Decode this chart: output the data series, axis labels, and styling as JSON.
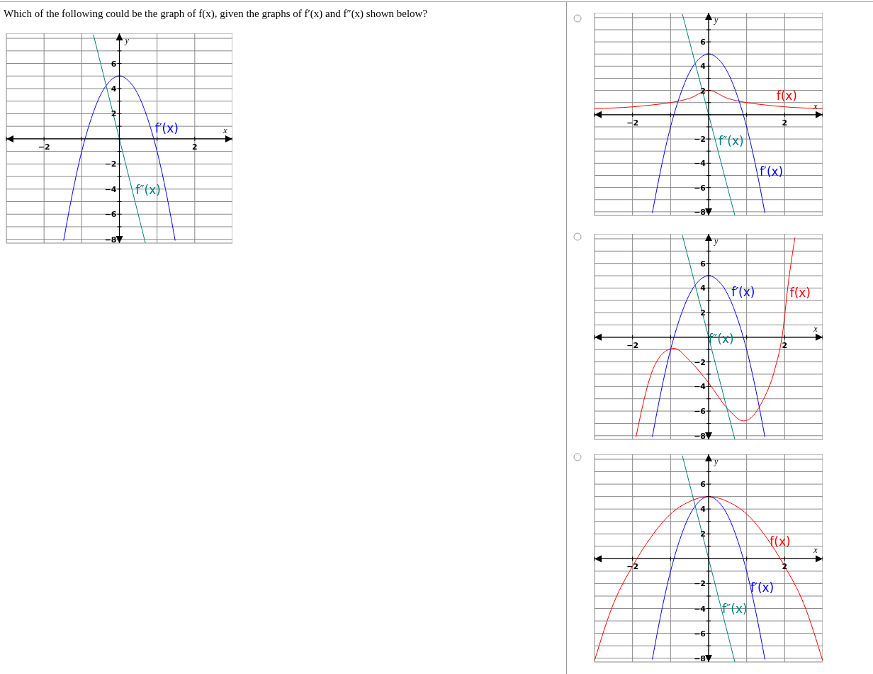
{
  "chart_data": [
    {
      "type": "line",
      "title": "Which of the following could be the graph of f(x), given the graphs of f′(x) and f″(x) shown below?",
      "xlabel": "x",
      "ylabel": "y",
      "grid": true,
      "marker": "none",
      "line_style": "solid",
      "xlim": [
        -3,
        3
      ],
      "ylim": [
        -8.3,
        8.4
      ],
      "xticks": [
        {
          "value": -3,
          "label": null
        },
        {
          "value": -2,
          "label": "−2"
        },
        {
          "value": -1,
          "label": null
        },
        {
          "value": 0,
          "label": null
        },
        {
          "value": 1,
          "label": null
        },
        {
          "value": 2,
          "label": "2"
        },
        {
          "value": 3,
          "label": null
        }
      ],
      "yticks": [
        {
          "value": -8,
          "label": "−8"
        },
        {
          "value": -7,
          "label": null
        },
        {
          "value": -6,
          "label": "−6"
        },
        {
          "value": -5,
          "label": null
        },
        {
          "value": -4,
          "label": "−4"
        },
        {
          "value": -3,
          "label": null
        },
        {
          "value": -2,
          "label": "−2"
        },
        {
          "value": -1,
          "label": null
        },
        {
          "value": 0,
          "label": null
        },
        {
          "value": 1,
          "label": null
        },
        {
          "value": 2,
          "label": "2"
        },
        {
          "value": 3,
          "label": null
        },
        {
          "value": 4,
          "label": "4"
        },
        {
          "value": 5,
          "label": null
        },
        {
          "value": 6,
          "label": "6"
        },
        {
          "value": 7,
          "label": null
        },
        {
          "value": 8,
          "label": null
        }
      ],
      "series": [
        {
          "name": "f′(x)",
          "color": "#0000ff",
          "x": [
            -1.48,
            -1.25,
            -1,
            -0.75,
            -0.5,
            -0.25,
            0,
            0.25,
            0.5,
            0.75,
            1,
            1.25,
            1.48
          ],
          "values": [
            -8.1,
            -4.4,
            -1,
            1.6,
            3.5,
            4.6,
            5,
            4.6,
            3.5,
            1.6,
            -1,
            -4.4,
            -8.1
          ]
        },
        {
          "name": "f″(x)",
          "color": "#008080",
          "x": [
            -0.69,
            0.69
          ],
          "values": [
            8.3,
            -8.3
          ]
        }
      ]
    },
    {
      "type": "line",
      "xlabel": "x",
      "ylabel": "y",
      "grid": true,
      "marker": "none",
      "line_style": "solid",
      "xlim": [
        -3,
        3
      ],
      "ylim": [
        -8.3,
        8.4
      ],
      "xticks": [
        {
          "value": -3,
          "label": null
        },
        {
          "value": -2,
          "label": "−2"
        },
        {
          "value": -1,
          "label": null
        },
        {
          "value": 0,
          "label": null
        },
        {
          "value": 1,
          "label": null
        },
        {
          "value": 2,
          "label": "2"
        },
        {
          "value": 3,
          "label": null
        }
      ],
      "yticks": [
        {
          "value": -8,
          "label": "−8"
        },
        {
          "value": -7,
          "label": null
        },
        {
          "value": -6,
          "label": "−6"
        },
        {
          "value": -5,
          "label": null
        },
        {
          "value": -4,
          "label": "−4"
        },
        {
          "value": -3,
          "label": null
        },
        {
          "value": -2,
          "label": "−2"
        },
        {
          "value": -1,
          "label": null
        },
        {
          "value": 0,
          "label": null
        },
        {
          "value": 1,
          "label": null
        },
        {
          "value": 2,
          "label": "2"
        },
        {
          "value": 3,
          "label": null
        },
        {
          "value": 4,
          "label": "4"
        },
        {
          "value": 5,
          "label": null
        },
        {
          "value": 6,
          "label": "6"
        },
        {
          "value": 7,
          "label": null
        },
        {
          "value": 8,
          "label": null
        }
      ],
      "series": [
        {
          "name": "f(x)",
          "color": "#ff0000",
          "x": [
            -3,
            -2,
            -1.5,
            -1,
            -0.5,
            0,
            0.5,
            1,
            1.5,
            2,
            3
          ],
          "values": [
            0.5,
            0.65,
            0.8,
            1,
            1.35,
            2,
            1.35,
            1,
            0.8,
            0.65,
            0.5
          ]
        },
        {
          "name": "f′(x)",
          "color": "#0000ff",
          "x": [
            -1.48,
            -1.25,
            -1,
            -0.75,
            -0.5,
            -0.25,
            0,
            0.25,
            0.5,
            0.75,
            1,
            1.25,
            1.48
          ],
          "values": [
            -8.1,
            -4.4,
            -1,
            1.6,
            3.5,
            4.6,
            5,
            4.6,
            3.5,
            1.6,
            -1,
            -4.4,
            -8.1
          ]
        },
        {
          "name": "f″(x)",
          "color": "#008080",
          "x": [
            -0.69,
            0.69
          ],
          "values": [
            8.3,
            -8.3
          ]
        }
      ]
    },
    {
      "type": "line",
      "xlabel": "x",
      "ylabel": "y",
      "grid": true,
      "marker": "none",
      "line_style": "solid",
      "xlim": [
        -3,
        3
      ],
      "ylim": [
        -8.3,
        8.4
      ],
      "xticks": [
        {
          "value": -3,
          "label": null
        },
        {
          "value": -2,
          "label": "−2"
        },
        {
          "value": -1,
          "label": null
        },
        {
          "value": 0,
          "label": null
        },
        {
          "value": 1,
          "label": null
        },
        {
          "value": 2,
          "label": "2"
        },
        {
          "value": 3,
          "label": null
        }
      ],
      "yticks": [
        {
          "value": -8,
          "label": "−8"
        },
        {
          "value": -7,
          "label": null
        },
        {
          "value": -6,
          "label": "−6"
        },
        {
          "value": -5,
          "label": null
        },
        {
          "value": -4,
          "label": "−4"
        },
        {
          "value": -3,
          "label": null
        },
        {
          "value": -2,
          "label": "−2"
        },
        {
          "value": -1,
          "label": null
        },
        {
          "value": 0,
          "label": null
        },
        {
          "value": 1,
          "label": null
        },
        {
          "value": 2,
          "label": "2"
        },
        {
          "value": 3,
          "label": null
        },
        {
          "value": 4,
          "label": "4"
        },
        {
          "value": 5,
          "label": null
        },
        {
          "value": 6,
          "label": "6"
        },
        {
          "value": 7,
          "label": null
        },
        {
          "value": 8,
          "label": null
        }
      ],
      "series": [
        {
          "name": "f(x)",
          "color": "#ff0000",
          "x": [
            -1.91,
            -1.5,
            -1.2,
            -0.91,
            -0.5,
            0,
            0.5,
            0.92,
            1.4,
            1.75,
            1.93,
            2.1,
            2.27
          ],
          "values": [
            -8.1,
            -2.9,
            -1.3,
            -0.9,
            -1.9,
            -3.7,
            -5.8,
            -6.8,
            -5.3,
            -2.5,
            0,
            4.5,
            8.1
          ]
        },
        {
          "name": "f′(x)",
          "color": "#0000ff",
          "x": [
            -1.48,
            -1.25,
            -1,
            -0.75,
            -0.5,
            -0.25,
            0,
            0.25,
            0.5,
            0.75,
            1,
            1.25,
            1.48
          ],
          "values": [
            -8.1,
            -4.4,
            -1,
            1.6,
            3.5,
            4.6,
            5,
            4.6,
            3.5,
            1.6,
            -1,
            -4.4,
            -8.1
          ]
        },
        {
          "name": "f″(x)",
          "color": "#008080",
          "x": [
            -0.69,
            0.69
          ],
          "values": [
            8.3,
            -8.3
          ]
        }
      ]
    },
    {
      "type": "line",
      "xlabel": "x",
      "ylabel": "y",
      "grid": true,
      "marker": "none",
      "line_style": "solid",
      "xlim": [
        -3,
        3
      ],
      "ylim": [
        -8.3,
        8.4
      ],
      "xticks": [
        {
          "value": -3,
          "label": null
        },
        {
          "value": -2,
          "label": "−2"
        },
        {
          "value": -1,
          "label": null
        },
        {
          "value": 0,
          "label": null
        },
        {
          "value": 1,
          "label": null
        },
        {
          "value": 2,
          "label": "2"
        },
        {
          "value": 3,
          "label": null
        }
      ],
      "yticks": [
        {
          "value": -8,
          "label": "−8"
        },
        {
          "value": -7,
          "label": null
        },
        {
          "value": -6,
          "label": "−6"
        },
        {
          "value": -5,
          "label": null
        },
        {
          "value": -4,
          "label": "−4"
        },
        {
          "value": -3,
          "label": null
        },
        {
          "value": -2,
          "label": "−2"
        },
        {
          "value": -1,
          "label": null
        },
        {
          "value": 0,
          "label": null
        },
        {
          "value": 1,
          "label": null
        },
        {
          "value": 2,
          "label": "2"
        },
        {
          "value": 3,
          "label": null
        },
        {
          "value": 4,
          "label": "4"
        },
        {
          "value": 5,
          "label": null
        },
        {
          "value": 6,
          "label": "6"
        },
        {
          "value": 7,
          "label": null
        },
        {
          "value": 8,
          "label": null
        }
      ],
      "series": [
        {
          "name": "f(x)",
          "color": "#ff0000",
          "x": [
            -3,
            -2.5,
            -2,
            -1.5,
            -1,
            -0.5,
            0,
            0.5,
            1,
            1.5,
            2,
            2.5,
            3
          ],
          "values": [
            -8.2,
            -3.6,
            -0.6,
            1.8,
            3.6,
            4.6,
            5,
            4.6,
            3.6,
            1.8,
            -0.6,
            -3.6,
            -8.2
          ]
        },
        {
          "name": "f′(x)",
          "color": "#0000ff",
          "x": [
            -1.48,
            -1.25,
            -1,
            -0.75,
            -0.5,
            -0.25,
            0,
            0.25,
            0.5,
            0.75,
            1,
            1.25,
            1.48
          ],
          "values": [
            -8.1,
            -4.4,
            -1,
            1.6,
            3.5,
            4.6,
            5,
            4.6,
            3.5,
            1.6,
            -1,
            -4.4,
            -8.1
          ]
        },
        {
          "name": "f″(x)",
          "color": "#008080",
          "x": [
            -0.69,
            0.69
          ],
          "values": [
            8.3,
            -8.3
          ]
        }
      ]
    }
  ]
}
